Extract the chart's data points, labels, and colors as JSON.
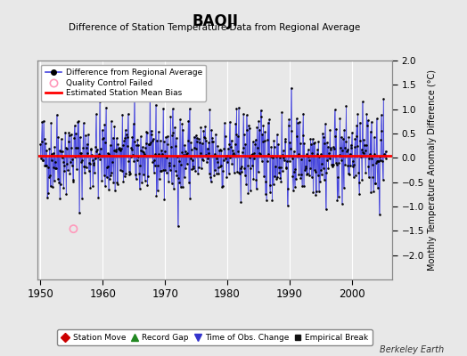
{
  "title": "BAOJI",
  "subtitle": "Difference of Station Temperature Data from Regional Average",
  "ylabel": "Monthly Temperature Anomaly Difference (°C)",
  "xlabel_years": [
    1950,
    1960,
    1970,
    1980,
    1990,
    2000
  ],
  "xlim": [
    1949.5,
    2006.5
  ],
  "ylim": [
    -2.5,
    2.0
  ],
  "yticks": [
    -2.0,
    -1.5,
    -1.0,
    -0.5,
    0.0,
    0.5,
    1.0,
    1.5,
    2.0
  ],
  "mean_bias": 0.05,
  "line_color": "#4444dd",
  "dot_color": "#000000",
  "bias_color": "#ff0000",
  "qc_fail_color": "#ff99bb",
  "bg_color": "#e8e8e8",
  "grid_color": "#ffffff",
  "seed": 42,
  "n_points": 660,
  "start_year": 1950.0,
  "end_year": 2005.5,
  "qc_fail_year": 1955.3,
  "qc_fail_value": -1.46,
  "legend1_labels": [
    "Difference from Regional Average",
    "Quality Control Failed",
    "Estimated Station Mean Bias"
  ],
  "legend2_labels": [
    "Station Move",
    "Record Gap",
    "Time of Obs. Change",
    "Empirical Break"
  ],
  "watermark": "Berkeley Earth"
}
